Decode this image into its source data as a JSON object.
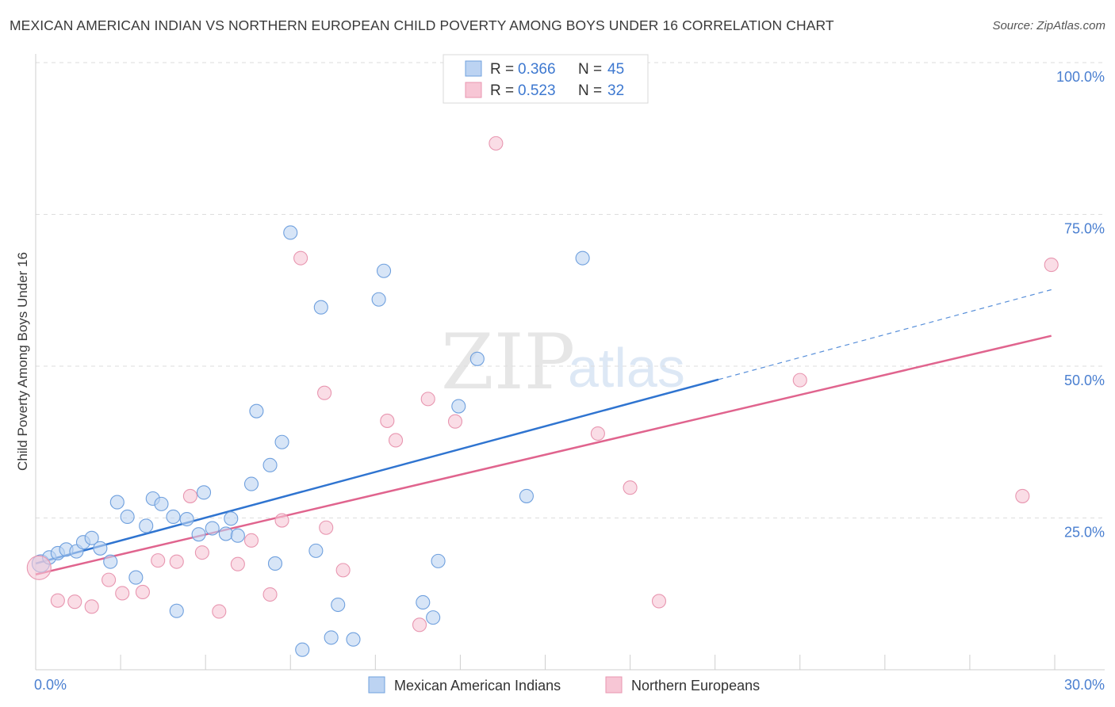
{
  "title": "MEXICAN AMERICAN INDIAN VS NORTHERN EUROPEAN CHILD POVERTY AMONG BOYS UNDER 16 CORRELATION CHART",
  "source": "Source: ZipAtlas.com",
  "watermark": {
    "zip": "ZIP",
    "atlas": "atlas"
  },
  "legend": {
    "r_label": "R =",
    "n_label": "N =",
    "rows": [
      {
        "r": "0.366",
        "n": "45"
      },
      {
        "r": "0.523",
        "n": "32"
      }
    ]
  },
  "chart_data": {
    "type": "scatter",
    "title": "MEXICAN AMERICAN INDIAN VS NORTHERN EUROPEAN CHILD POVERTY AMONG BOYS UNDER 16 CORRELATION CHART",
    "xlabel": "",
    "ylabel": "Child Poverty Among Boys Under 16",
    "xlim": [
      0,
      30
    ],
    "ylim": [
      0,
      100
    ],
    "x_tick_labels": [
      "0.0%",
      "30.0%"
    ],
    "y_tick_labels": [
      "25.0%",
      "50.0%",
      "75.0%",
      "100.0%"
    ],
    "y_ticks": [
      25,
      50,
      75,
      100
    ],
    "series": [
      {
        "name": "Mexican American Indians",
        "color": "#6fa0de",
        "fill": "#bcd3f2",
        "trend_color": "#2f74d0",
        "trend": {
          "x0": 0,
          "y0": 17.5,
          "x1": 20.1,
          "y1": 47.8,
          "dash_x1": 29.9,
          "dash_y1": 62.6
        },
        "points": [
          [
            0.15,
            17.5
          ],
          [
            0.4,
            18.5
          ],
          [
            0.65,
            19.2
          ],
          [
            0.9,
            19.8
          ],
          [
            1.2,
            19.5
          ],
          [
            1.4,
            21.0
          ],
          [
            1.65,
            21.7
          ],
          [
            1.9,
            20.0
          ],
          [
            2.2,
            17.8
          ],
          [
            2.4,
            27.6
          ],
          [
            2.7,
            25.2
          ],
          [
            2.95,
            15.2
          ],
          [
            3.25,
            23.7
          ],
          [
            3.45,
            28.2
          ],
          [
            3.7,
            27.3
          ],
          [
            4.05,
            25.2
          ],
          [
            4.15,
            9.7
          ],
          [
            4.45,
            24.8
          ],
          [
            4.8,
            22.3
          ],
          [
            4.95,
            29.2
          ],
          [
            5.2,
            23.3
          ],
          [
            5.6,
            22.4
          ],
          [
            5.75,
            24.9
          ],
          [
            5.95,
            22.1
          ],
          [
            6.35,
            30.6
          ],
          [
            6.5,
            42.6
          ],
          [
            6.9,
            33.7
          ],
          [
            7.05,
            17.5
          ],
          [
            7.25,
            37.5
          ],
          [
            7.5,
            72.0
          ],
          [
            7.85,
            3.3
          ],
          [
            8.25,
            19.6
          ],
          [
            8.4,
            59.7
          ],
          [
            8.7,
            5.3
          ],
          [
            8.9,
            10.7
          ],
          [
            9.35,
            5.0
          ],
          [
            10.1,
            61.0
          ],
          [
            10.25,
            65.7
          ],
          [
            11.4,
            11.1
          ],
          [
            11.7,
            8.6
          ],
          [
            11.85,
            17.9
          ],
          [
            12.45,
            43.4
          ],
          [
            13.0,
            51.2
          ],
          [
            14.45,
            28.6
          ],
          [
            16.1,
            67.8
          ]
        ]
      },
      {
        "name": "Northern Europeans",
        "color": "#e896b0",
        "fill": "#f7c6d5",
        "trend_color": "#e0648e",
        "trend": {
          "x0": 0,
          "y0": 15.7,
          "x1": 29.9,
          "y1": 55.0
        },
        "points": [
          [
            0.1,
            16.8
          ],
          [
            0.65,
            11.4
          ],
          [
            1.15,
            11.2
          ],
          [
            1.65,
            10.4
          ],
          [
            2.15,
            14.8
          ],
          [
            2.55,
            12.6
          ],
          [
            3.15,
            12.8
          ],
          [
            3.6,
            18.0
          ],
          [
            4.15,
            17.8
          ],
          [
            4.55,
            28.6
          ],
          [
            4.9,
            19.3
          ],
          [
            5.4,
            9.6
          ],
          [
            5.95,
            17.4
          ],
          [
            6.35,
            21.3
          ],
          [
            6.9,
            12.4
          ],
          [
            7.25,
            24.6
          ],
          [
            7.8,
            67.8
          ],
          [
            8.5,
            45.6
          ],
          [
            8.55,
            23.4
          ],
          [
            9.05,
            16.4
          ],
          [
            10.35,
            41.0
          ],
          [
            10.6,
            37.8
          ],
          [
            11.3,
            7.4
          ],
          [
            11.55,
            44.6
          ],
          [
            12.35,
            40.9
          ],
          [
            13.55,
            86.7
          ],
          [
            16.55,
            38.9
          ],
          [
            17.5,
            30.0
          ],
          [
            18.35,
            11.3
          ],
          [
            22.5,
            47.7
          ],
          [
            29.05,
            28.6
          ],
          [
            29.9,
            66.7
          ]
        ]
      }
    ],
    "grid": true,
    "legend_position": "top-center"
  }
}
